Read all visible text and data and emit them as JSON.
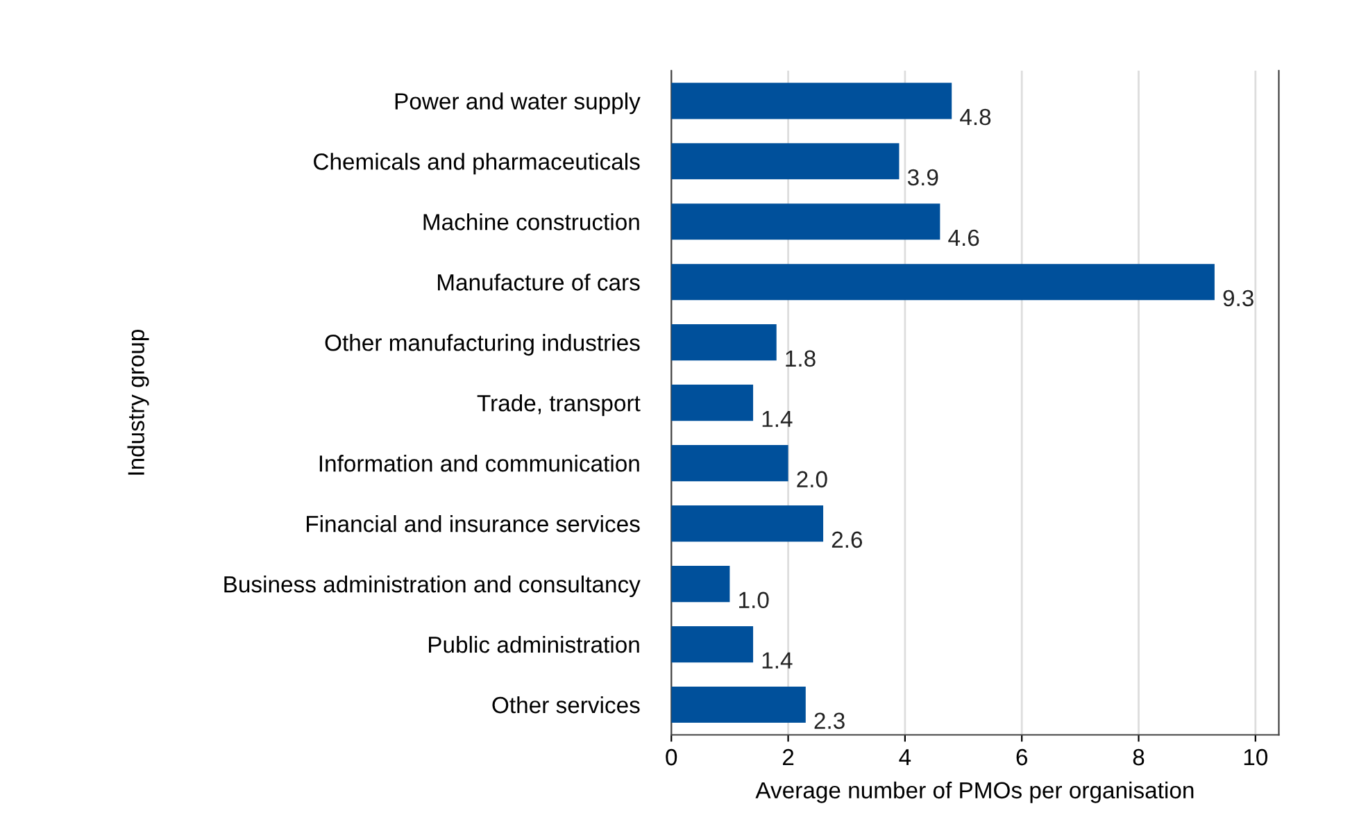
{
  "chart_data": {
    "type": "bar",
    "orientation": "horizontal",
    "xlabel": "Average number of PMOs per organisation",
    "ylabel": "Industry group",
    "categories": [
      "Power and water supply",
      "Chemicals and pharmaceuticals",
      "Machine construction",
      "Manufacture of cars",
      "Other manufacturing industries",
      "Trade, transport",
      "Information and communication",
      "Financial and insurance services",
      "Business administration and consultancy",
      "Public administration",
      "Other services"
    ],
    "values": [
      4.8,
      3.9,
      4.6,
      9.3,
      1.8,
      1.4,
      2.0,
      2.6,
      1.0,
      1.4,
      2.3
    ],
    "value_labels": [
      "4.8",
      "3.9",
      "4.6",
      "9.3",
      "1.8",
      "1.4",
      "2.0",
      "2.6",
      "1.0",
      "1.4",
      "2.3"
    ],
    "color": "#00509b",
    "xlim": [
      0,
      10.4
    ],
    "xticks": [
      0,
      2,
      4,
      6,
      8,
      10
    ],
    "grid": "x"
  }
}
